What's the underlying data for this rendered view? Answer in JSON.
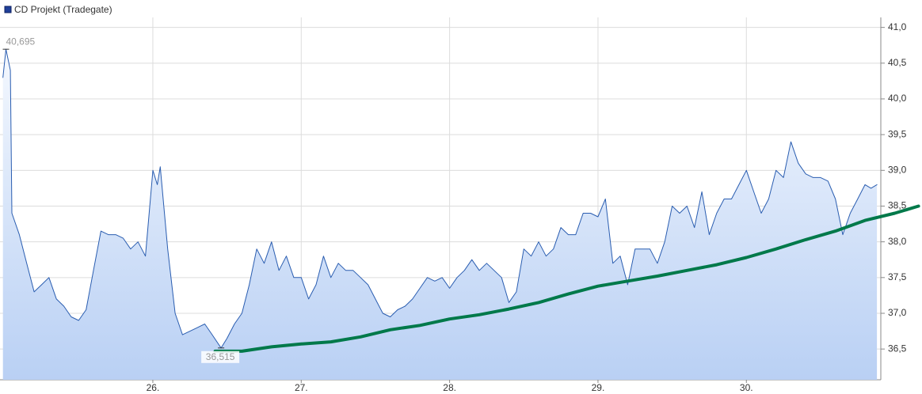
{
  "chart_data": {
    "type": "line",
    "series": [
      {
        "name": "CD Projekt (Tradegate)",
        "color": "#2a5db0",
        "fill": true,
        "x": [
          24.99,
          25.01,
          25.04,
          25.05,
          25.1,
          25.15,
          25.2,
          25.25,
          25.3,
          25.35,
          25.4,
          25.45,
          25.5,
          25.55,
          25.6,
          25.65,
          25.7,
          25.75,
          25.8,
          25.85,
          25.9,
          25.95,
          26.0,
          26.03,
          26.05,
          26.1,
          26.15,
          26.2,
          26.25,
          26.3,
          26.35,
          26.4,
          26.46,
          26.5,
          26.55,
          26.6,
          26.65,
          26.7,
          26.75,
          26.8,
          26.85,
          26.9,
          26.95,
          27.0,
          27.05,
          27.1,
          27.15,
          27.2,
          27.25,
          27.3,
          27.35,
          27.4,
          27.45,
          27.5,
          27.55,
          27.6,
          27.65,
          27.7,
          27.75,
          27.8,
          27.85,
          27.9,
          27.95,
          28.0,
          28.05,
          28.1,
          28.15,
          28.2,
          28.25,
          28.3,
          28.35,
          28.4,
          28.45,
          28.5,
          28.55,
          28.6,
          28.65,
          28.7,
          28.75,
          28.8,
          28.85,
          28.9,
          28.95,
          29.0,
          29.05,
          29.1,
          29.15,
          29.2,
          29.25,
          29.3,
          29.35,
          29.4,
          29.45,
          29.5,
          29.55,
          29.6,
          29.65,
          29.7,
          29.75,
          29.8,
          29.85,
          29.9,
          29.95,
          30.0,
          30.05,
          30.1,
          30.15,
          30.2,
          30.25,
          30.3,
          30.35,
          30.4,
          30.45,
          30.5,
          30.55,
          30.6,
          30.65,
          30.7,
          30.75,
          30.8,
          30.84,
          30.88
        ],
        "values": [
          40.3,
          40.695,
          40.4,
          38.4,
          38.1,
          37.7,
          37.3,
          37.4,
          37.5,
          37.2,
          37.1,
          36.95,
          36.9,
          37.05,
          37.6,
          38.15,
          38.1,
          38.1,
          38.05,
          37.9,
          38.0,
          37.8,
          39.0,
          38.8,
          39.05,
          37.9,
          37.0,
          36.7,
          36.75,
          36.8,
          36.85,
          36.7,
          36.515,
          36.65,
          36.85,
          37.0,
          37.4,
          37.9,
          37.7,
          38.0,
          37.6,
          37.8,
          37.5,
          37.5,
          37.2,
          37.4,
          37.8,
          37.5,
          37.7,
          37.6,
          37.6,
          37.5,
          37.4,
          37.2,
          37.0,
          36.95,
          37.05,
          37.1,
          37.2,
          37.35,
          37.5,
          37.45,
          37.5,
          37.35,
          37.5,
          37.6,
          37.75,
          37.6,
          37.7,
          37.6,
          37.5,
          37.15,
          37.3,
          37.9,
          37.8,
          38.0,
          37.8,
          37.9,
          38.2,
          38.1,
          38.1,
          38.4,
          38.4,
          38.35,
          38.6,
          37.7,
          37.8,
          37.4,
          37.9,
          37.9,
          37.9,
          37.7,
          38.0,
          38.5,
          38.4,
          38.5,
          38.2,
          38.7,
          38.1,
          38.4,
          38.6,
          38.6,
          38.8,
          39.0,
          38.7,
          38.4,
          38.6,
          39.0,
          38.9,
          39.4,
          39.1,
          38.95,
          38.9,
          38.9,
          38.85,
          38.6,
          38.1,
          38.4,
          38.6,
          38.8,
          38.75,
          38.8
        ]
      },
      {
        "color": "#00794a",
        "fill": false,
        "x": [
          26.42,
          26.6,
          26.8,
          27.0,
          27.2,
          27.4,
          27.6,
          27.8,
          28.0,
          28.2,
          28.4,
          28.6,
          28.8,
          29.0,
          29.2,
          29.4,
          29.6,
          29.8,
          30.0,
          30.2,
          30.4,
          30.6,
          30.8,
          31.0,
          31.16
        ],
        "values": [
          36.47,
          36.47,
          36.53,
          36.57,
          36.6,
          36.67,
          36.77,
          36.83,
          36.92,
          36.98,
          37.06,
          37.15,
          37.27,
          37.38,
          37.45,
          37.52,
          37.6,
          37.68,
          37.78,
          37.9,
          38.03,
          38.15,
          38.3,
          38.4,
          38.5
        ]
      }
    ],
    "annotations": [
      "40,695",
      "36,515"
    ],
    "xlim": [
      24.97,
      30.906
    ],
    "xticks": [
      {
        "value": 26,
        "label": "26."
      },
      {
        "value": 27,
        "label": "27."
      },
      {
        "value": 28,
        "label": "28."
      },
      {
        "value": 29,
        "label": "29."
      },
      {
        "value": 30,
        "label": "30."
      }
    ],
    "ylim": [
      36.07,
      41.14
    ],
    "yticks": [
      {
        "value": 36.5,
        "label": "36,5"
      },
      {
        "value": 37,
        "label": "37,0"
      },
      {
        "value": 37.5,
        "label": "37,5"
      },
      {
        "value": 38,
        "label": "38,0"
      },
      {
        "value": 38.5,
        "label": "38,5"
      },
      {
        "value": 39,
        "label": "39,0"
      },
      {
        "value": 39.5,
        "label": "39,5"
      },
      {
        "value": 40,
        "label": "40,0"
      },
      {
        "value": 40.5,
        "label": "40,5"
      },
      {
        "value": 41,
        "label": "41,0"
      }
    ],
    "grid": true,
    "legend": "top-left"
  }
}
